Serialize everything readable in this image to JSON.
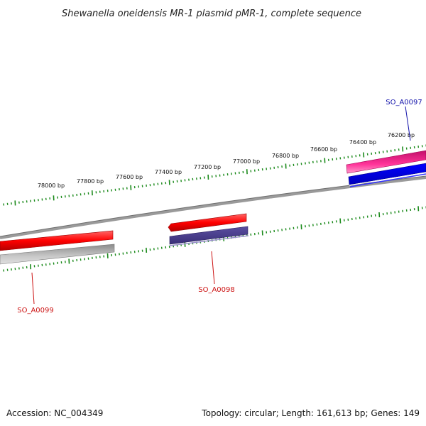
{
  "title": "Shewanella oneidensis MR-1 plasmid pMR-1, complete sequence",
  "ticks": [
    "78000 bp",
    "77800 bp",
    "77600 bp",
    "77400 bp",
    "77200 bp",
    "77000 bp",
    "76800 bp",
    "76600 bp",
    "76400 bp",
    "76200 bp"
  ],
  "genes": [
    {
      "name": "SO_A0097",
      "color": "#1111aa"
    },
    {
      "name": "SO_A0098",
      "color": "#cc1111"
    },
    {
      "name": "SO_A0099",
      "color": "#cc1111"
    }
  ],
  "colors": {
    "backbone": "#808080",
    "tick": "#1b8a1b",
    "forward": "#ff0000",
    "forward_light": "#ff3366",
    "reverse": "#0000ee",
    "reverse_muted": "#4a3f8c",
    "reverse_gray": "#bdbdbd"
  },
  "footer": {
    "accession": "Accession: NC_004349",
    "summary": "Topology: circular; Length: 161,613 bp; Genes: 149"
  }
}
